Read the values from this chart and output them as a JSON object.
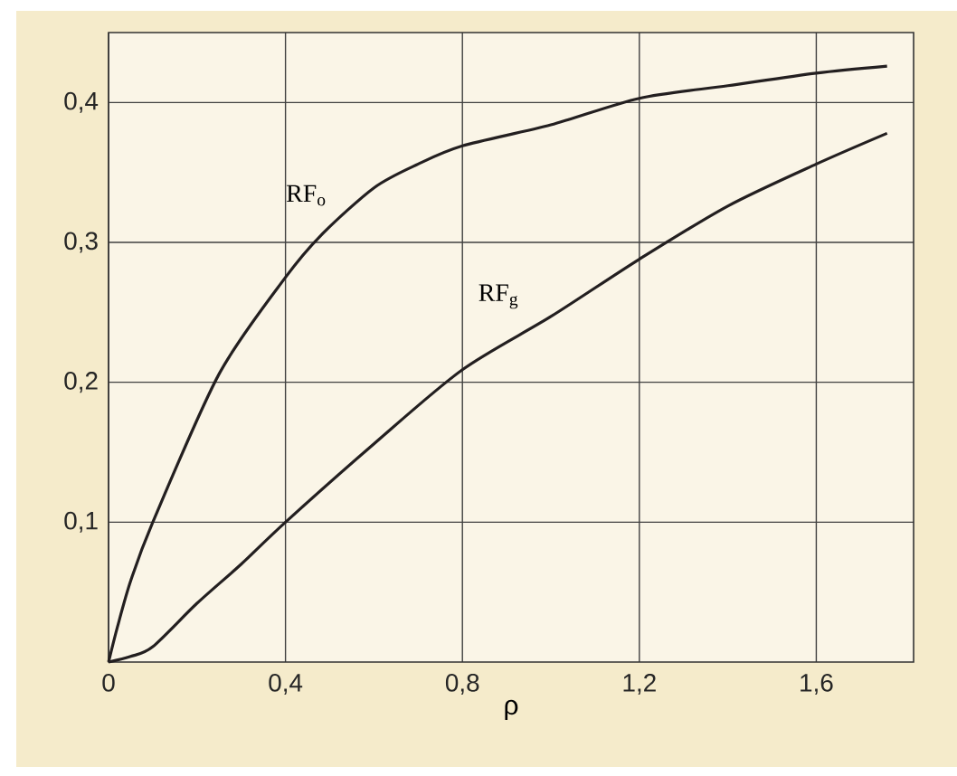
{
  "chart_data": {
    "type": "line",
    "xlabel": "ρ",
    "xlim": [
      0,
      1.82
    ],
    "ylim": [
      0,
      0.45
    ],
    "xticks": [
      {
        "value": 0,
        "label": "0"
      },
      {
        "value": 0.4,
        "label": "0,4"
      },
      {
        "value": 0.8,
        "label": "0,8"
      },
      {
        "value": 1.2,
        "label": "1,2"
      },
      {
        "value": 1.6,
        "label": "1,6"
      }
    ],
    "yticks": [
      {
        "value": 0.1,
        "label": "0,1"
      },
      {
        "value": 0.2,
        "label": "0,2"
      },
      {
        "value": 0.3,
        "label": "0,3"
      },
      {
        "value": 0.4,
        "label": "0,4"
      }
    ],
    "grid": true,
    "legend": false,
    "marker": "none",
    "line_style": "solid",
    "series": [
      {
        "name": "RF$_{o}$",
        "color": "#231f20",
        "x": [
          0,
          0.02,
          0.05,
          0.1,
          0.25,
          0.4,
          0.48,
          0.6,
          0.7,
          0.8,
          1.0,
          1.2,
          1.4,
          1.6,
          1.76
        ],
        "values": [
          0,
          0.025,
          0.058,
          0.1,
          0.206,
          0.275,
          0.305,
          0.339,
          0.356,
          0.369,
          0.384,
          0.403,
          0.412,
          0.421,
          0.426
        ]
      },
      {
        "name": "RF$_{g}$",
        "color": "#231f20",
        "x": [
          0,
          0.05,
          0.1,
          0.2,
          0.3,
          0.4,
          0.6,
          0.8,
          1.0,
          1.2,
          1.4,
          1.6,
          1.76
        ],
        "values": [
          0,
          0.004,
          0.011,
          0.042,
          0.07,
          0.1,
          0.156,
          0.209,
          0.247,
          0.288,
          0.326,
          0.356,
          0.378
        ]
      }
    ]
  }
}
